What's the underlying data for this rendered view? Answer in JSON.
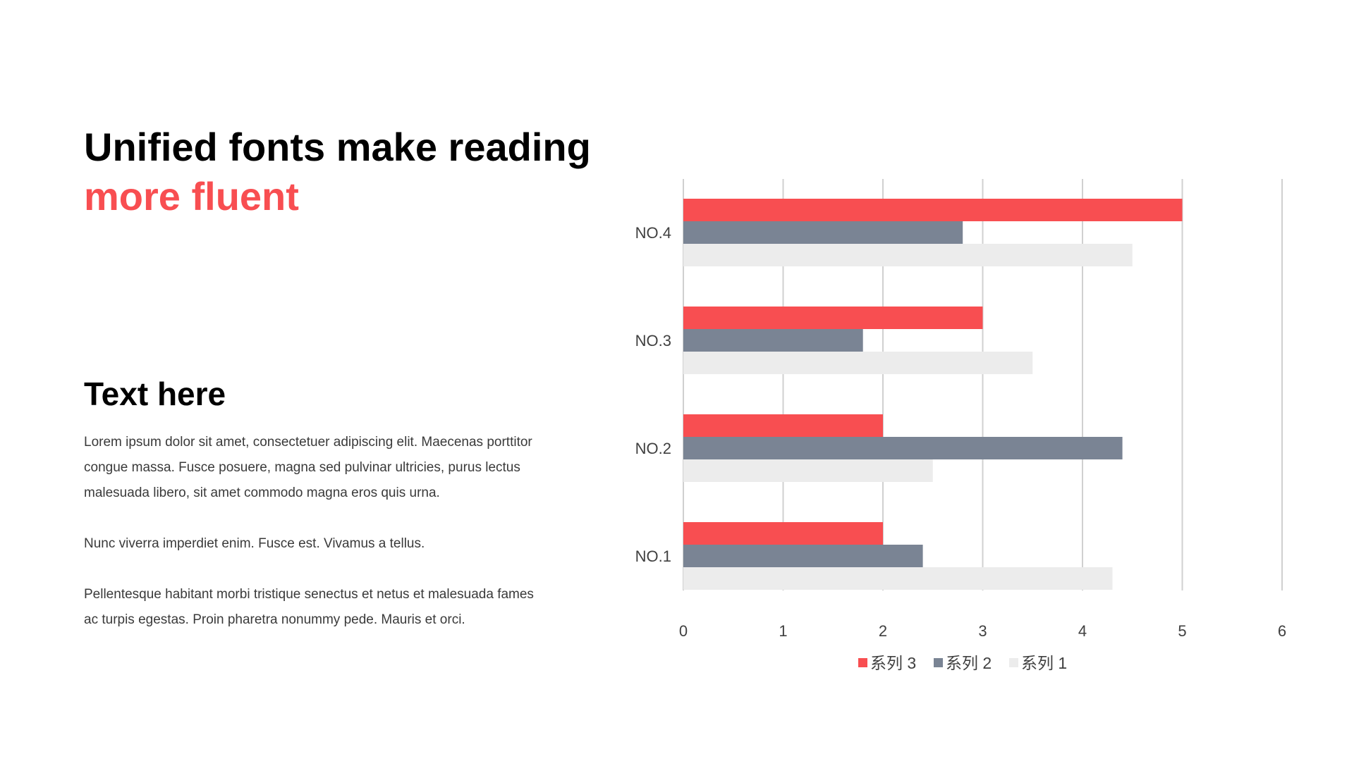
{
  "heading": {
    "line1": "Unified fonts make reading",
    "line2": "more fluent"
  },
  "section": {
    "title": "Text here",
    "paragraphs": [
      "Lorem ipsum dolor sit amet, consectetuer adipiscing elit. Maecenas porttitor congue massa. Fusce posuere, magna sed pulvinar ultricies, purus lectus malesuada libero, sit amet commodo magna eros quis urna.",
      "Nunc viverra imperdiet enim. Fusce est. Vivamus a tellus.",
      "Pellentesque habitant morbi tristique senectus et netus et malesuada fames ac turpis egestas. Proin pharetra nonummy pede. Mauris et orci."
    ]
  },
  "colors": {
    "accent": "#f84e51",
    "series3": "#f84e51",
    "series2": "#7a8494",
    "series1": "#ececec",
    "grid": "#d0d0d0"
  },
  "chart_data": {
    "type": "bar",
    "orientation": "horizontal",
    "categories": [
      "NO.1",
      "NO.2",
      "NO.3",
      "NO.4"
    ],
    "series": [
      {
        "name": "系列 1",
        "values": [
          4.3,
          2.5,
          3.5,
          4.5
        ]
      },
      {
        "name": "系列 2",
        "values": [
          2.4,
          4.4,
          1.8,
          2.8
        ]
      },
      {
        "name": "系列 3",
        "values": [
          2.0,
          2.0,
          3.0,
          5.0
        ]
      }
    ],
    "legend_order": [
      "系列 3",
      "系列 2",
      "系列 1"
    ],
    "xlim": [
      0,
      6
    ],
    "xticks": [
      0,
      1,
      2,
      3,
      4,
      5,
      6
    ],
    "grid": "vertical",
    "legend": "bottom"
  }
}
